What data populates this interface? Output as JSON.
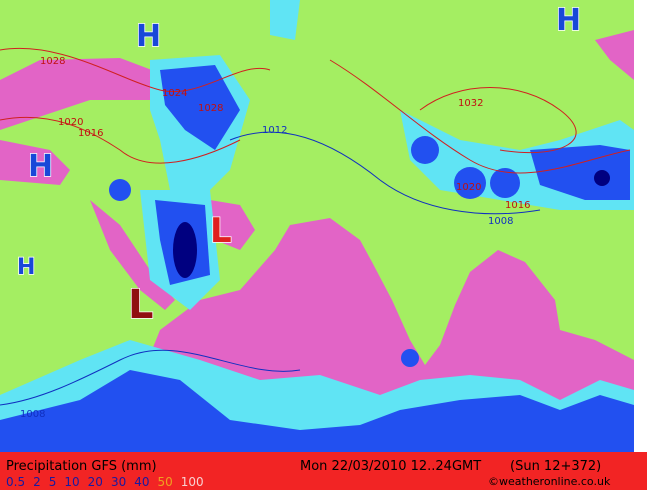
{
  "map": {
    "pressure_centers": [
      "H",
      "H",
      "H",
      "H",
      "L",
      "L"
    ],
    "isobar_labels": [
      "1028",
      "1024",
      "1028",
      "1020",
      "1016",
      "1012",
      "1032",
      "1020",
      "1016",
      "1008",
      "1008"
    ],
    "footer": {
      "title": "Precipitation GFS (mm)",
      "date": "Mon 22/03/2010 12..24GMT",
      "run": "(Sun 12+372)",
      "credit": "©weatheronline.co.uk",
      "legend": [
        {
          "label": "0.5",
          "color": "#1a1aa0"
        },
        {
          "label": "2",
          "color": "#1a1aa0"
        },
        {
          "label": "5",
          "color": "#1a1aa0"
        },
        {
          "label": "10",
          "color": "#1a1aa0"
        },
        {
          "label": "20",
          "color": "#1a1aa0"
        },
        {
          "label": "30",
          "color": "#1a1aa0"
        },
        {
          "label": "40",
          "color": "#1a1aa0"
        },
        {
          "label": "50",
          "color": "#f0a020"
        },
        {
          "label": "100",
          "color": "#f8d0d0"
        }
      ]
    }
  }
}
